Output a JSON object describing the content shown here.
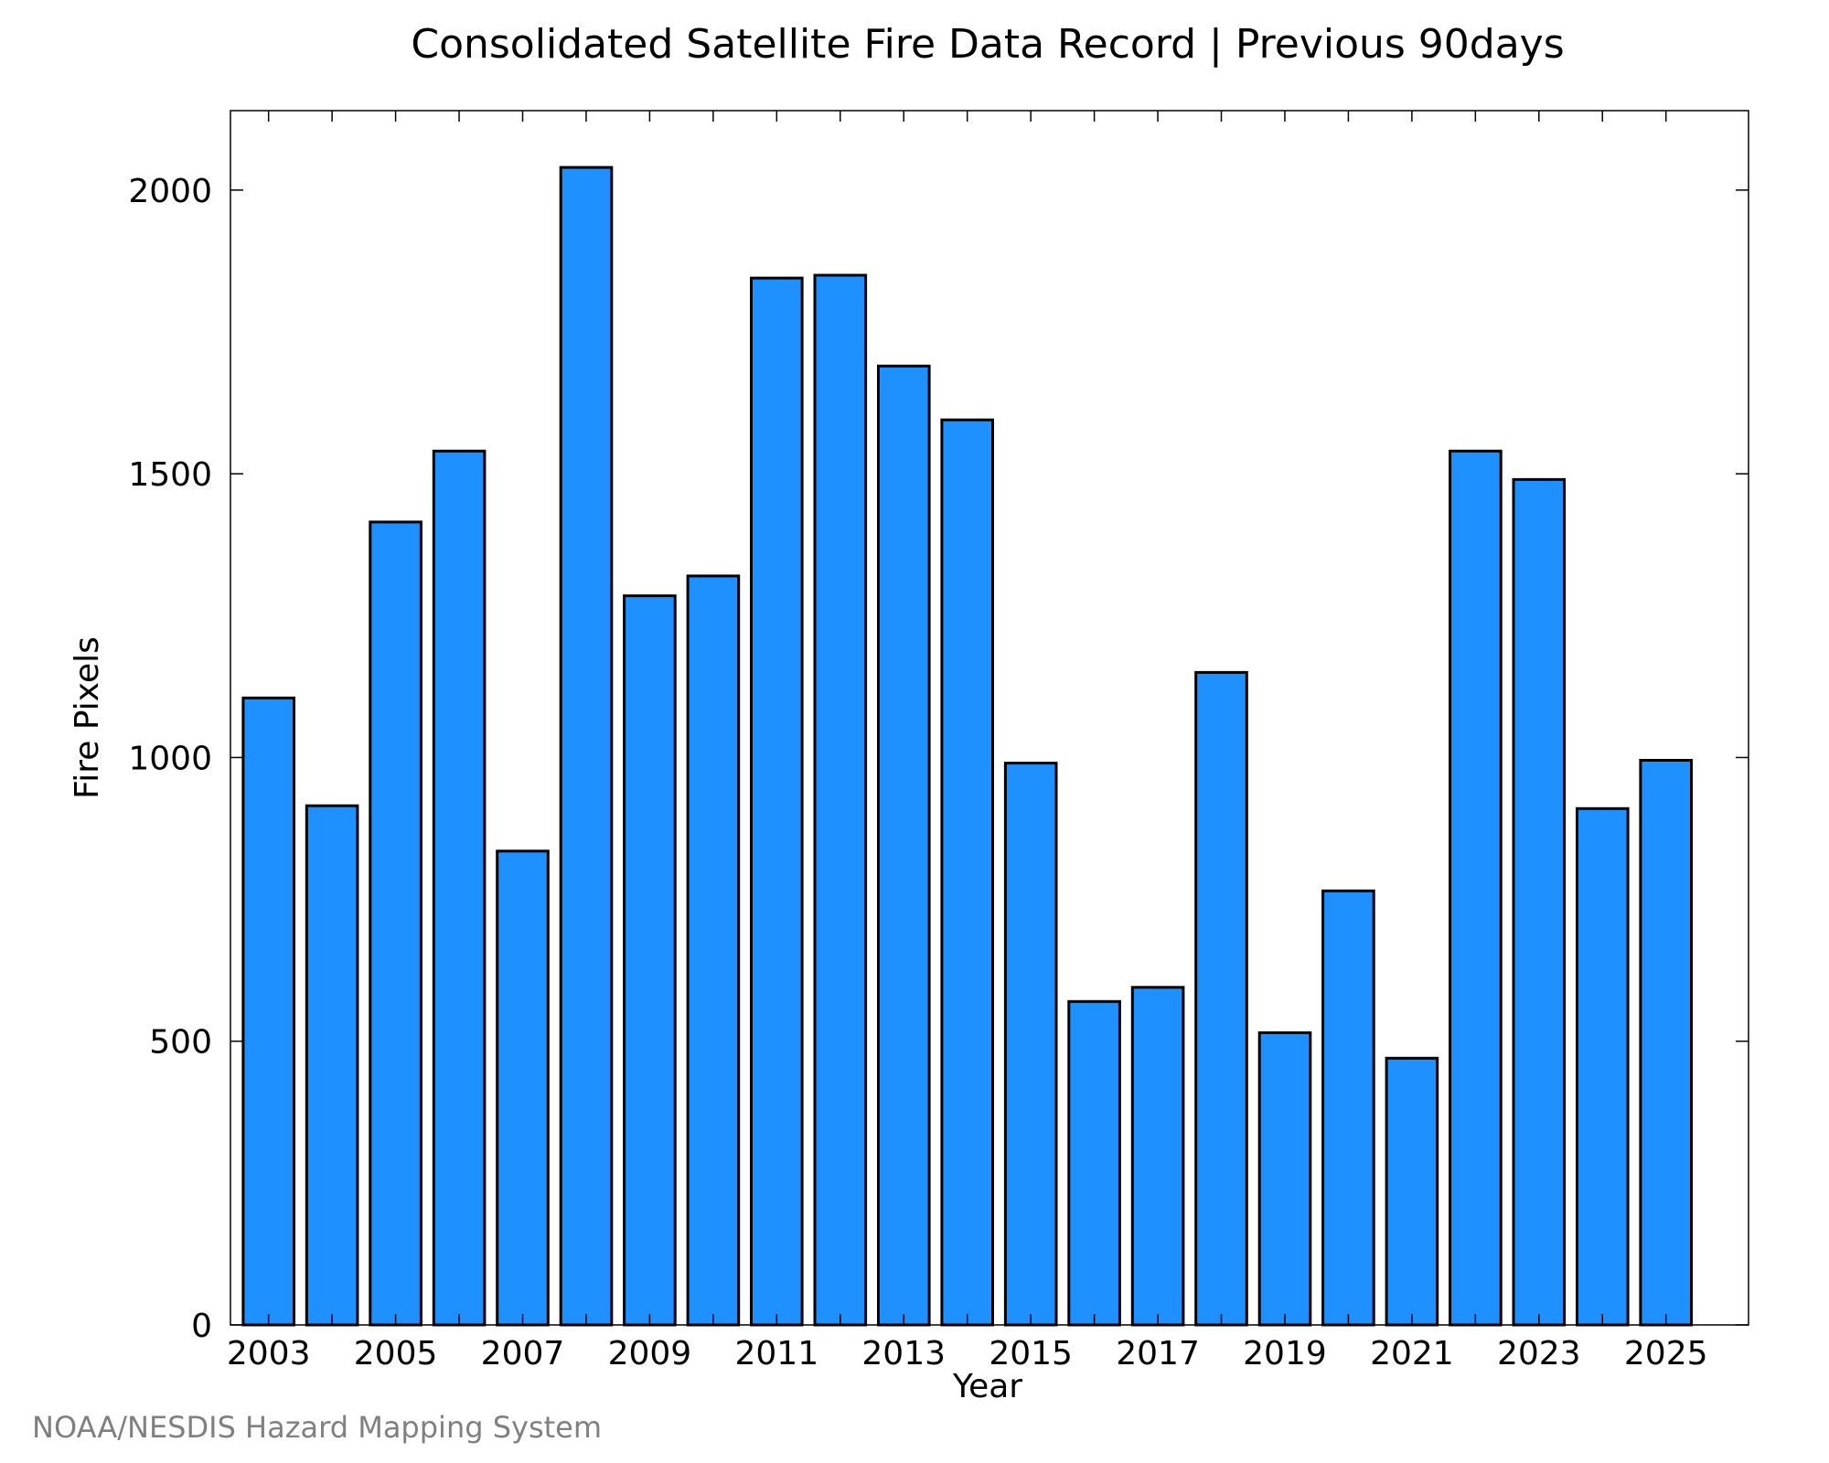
{
  "chart_data": {
    "type": "bar",
    "title": "Consolidated Satellite Fire Data Record | Previous 90days",
    "xlabel": "Year",
    "ylabel": "Fire Pixels",
    "credit": "NOAA/NESDIS Hazard Mapping System",
    "categories": [
      2003,
      2004,
      2005,
      2006,
      2007,
      2008,
      2009,
      2010,
      2011,
      2012,
      2013,
      2014,
      2015,
      2016,
      2017,
      2018,
      2019,
      2020,
      2021,
      2022,
      2023,
      2024,
      2025
    ],
    "values": [
      1105,
      915,
      1415,
      1540,
      835,
      2040,
      1285,
      1320,
      1845,
      1850,
      1690,
      1595,
      990,
      570,
      595,
      1150,
      515,
      765,
      470,
      1540,
      1490,
      910,
      995
    ],
    "x_tick_labels": [
      "2003",
      "2005",
      "2007",
      "2009",
      "2011",
      "2013",
      "2015",
      "2017",
      "2019",
      "2021",
      "2023",
      "2025"
    ],
    "y_ticks": [
      0,
      500,
      1000,
      1500,
      2000
    ],
    "ylim": [
      0,
      2140
    ],
    "grid": false,
    "bar_color": "#1e90ff",
    "edge_color": "#000000"
  }
}
